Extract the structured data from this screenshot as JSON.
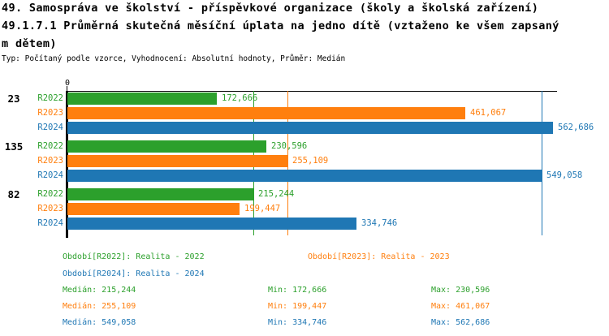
{
  "header": {
    "title_line1": "49. Samospráva ve školství - příspěvkové organizace (školy a školská zařízení)",
    "title_line2": "49.1.7.1 Průměrná skutečná měsíční úplata na jedno dítě (vztaženo ke všem zapsaný",
    "title_line3": "m dětem)",
    "meta_line": "Typ: Počítaný podle vzorce, Vyhodnocení: Absolutní hodnoty, Průměr: Medián"
  },
  "colors": {
    "series": [
      "#2ca02c",
      "#ff7f0e",
      "#1f77b4"
    ],
    "axis": "#000000",
    "background": "#ffffff"
  },
  "chart_data": {
    "type": "bar",
    "orientation": "horizontal",
    "axis_origin_label": "0",
    "series": [
      "R2022",
      "R2023",
      "R2024"
    ],
    "groups": [
      {
        "label": "23",
        "values": [
          172666,
          461067,
          562686
        ],
        "value_labels": [
          "172,666",
          "461,067",
          "562,686"
        ]
      },
      {
        "label": "135",
        "values": [
          230596,
          255109,
          549058
        ],
        "value_labels": [
          "230,596",
          "255,109",
          "549,058"
        ]
      },
      {
        "label": "82",
        "values": [
          215244,
          199447,
          334746
        ],
        "value_labels": [
          "215,244",
          "199,447",
          "334,746"
        ]
      }
    ],
    "median_lines": [
      {
        "series": "R2022",
        "value": 215244
      },
      {
        "series": "R2023",
        "value": 255109
      },
      {
        "series": "R2024",
        "value": 549058
      }
    ],
    "xlim": [
      0,
      572000
    ],
    "grid": false,
    "legend_position": "bottom"
  },
  "legend": [
    {
      "label": "Období[R2022]: Realita - 2022"
    },
    {
      "label": "Období[R2023]: Realita - 2023"
    },
    {
      "label": "Období[R2024]: Realita - 2024"
    }
  ],
  "stats": [
    {
      "median": "Medián: 215,244",
      "min": "Min: 172,666",
      "max": "Max: 230,596"
    },
    {
      "median": "Medián: 255,109",
      "min": "Min: 199,447",
      "max": "Max: 461,067"
    },
    {
      "median": "Medián: 549,058",
      "min": "Min: 334,746",
      "max": "Max: 562,686"
    }
  ]
}
